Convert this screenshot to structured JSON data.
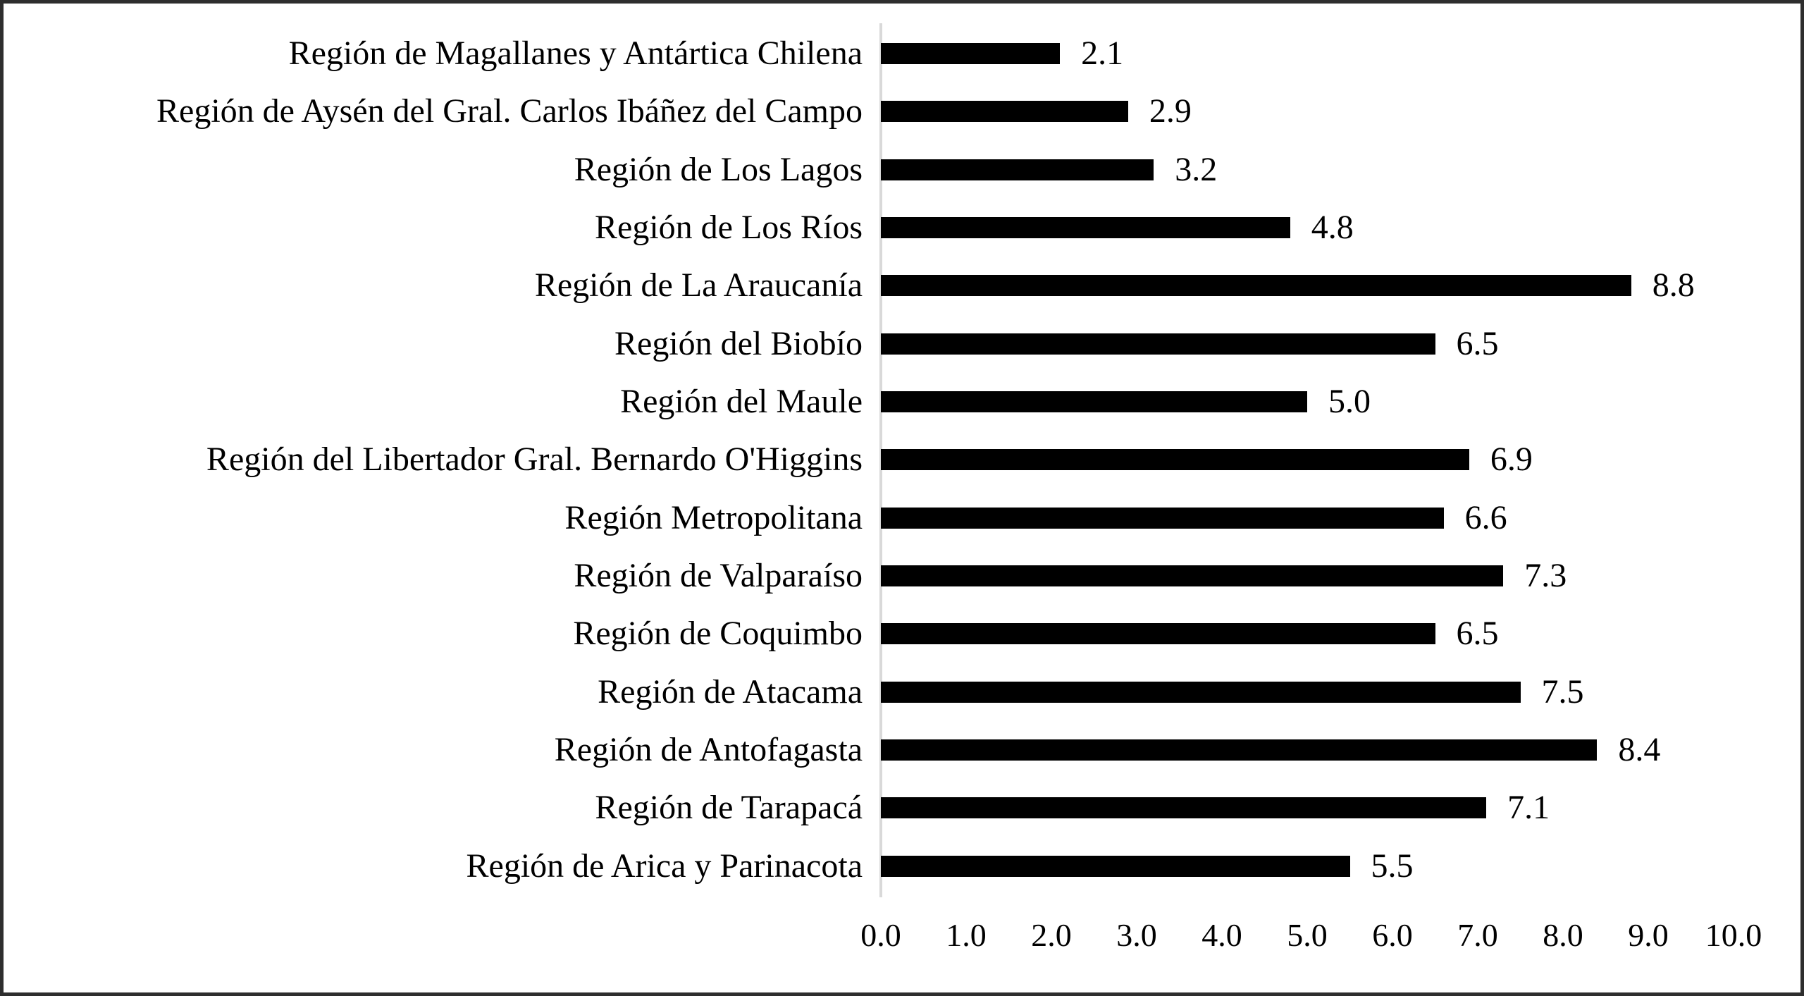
{
  "chart_data": {
    "type": "bar",
    "orientation": "horizontal",
    "title": "",
    "xlabel": "",
    "ylabel": "",
    "xlim": [
      0,
      10
    ],
    "grid": false,
    "legend": false,
    "categories": [
      "Región de Magallanes y Antártica Chilena",
      "Región de Aysén del Gral. Carlos Ibáñez del Campo",
      "Región de Los Lagos",
      "Región de Los Ríos",
      "Región de La Araucanía",
      "Región del Biobío",
      "Región del Maule",
      "Región del Libertador Gral. Bernardo O'Higgins",
      "Región Metropolitana",
      "Región de Valparaíso",
      "Región de Coquimbo",
      "Región de Atacama",
      "Región de Antofagasta",
      "Región de Tarapacá",
      "Región de Arica y Parinacota"
    ],
    "values": [
      2.1,
      2.9,
      3.2,
      4.8,
      8.8,
      6.5,
      5.0,
      6.9,
      6.6,
      7.3,
      6.5,
      7.5,
      8.4,
      7.1,
      5.5
    ],
    "value_labels": [
      "2.1",
      "2.9",
      "3.2",
      "4.8",
      "8.8",
      "6.5",
      "5.0",
      "6.9",
      "6.6",
      "7.3",
      "6.5",
      "7.5",
      "8.4",
      "7.1",
      "5.5"
    ],
    "x_ticks": [
      "0.0",
      "1.0",
      "2.0",
      "3.0",
      "4.0",
      "5.0",
      "6.0",
      "7.0",
      "8.0",
      "9.0",
      "10.0"
    ],
    "colors": {
      "bar": "#000000",
      "text": "#000000",
      "axis_line": "#d9d9d9",
      "frame_border": "#2e2e2e",
      "background": "#ffffff"
    }
  }
}
